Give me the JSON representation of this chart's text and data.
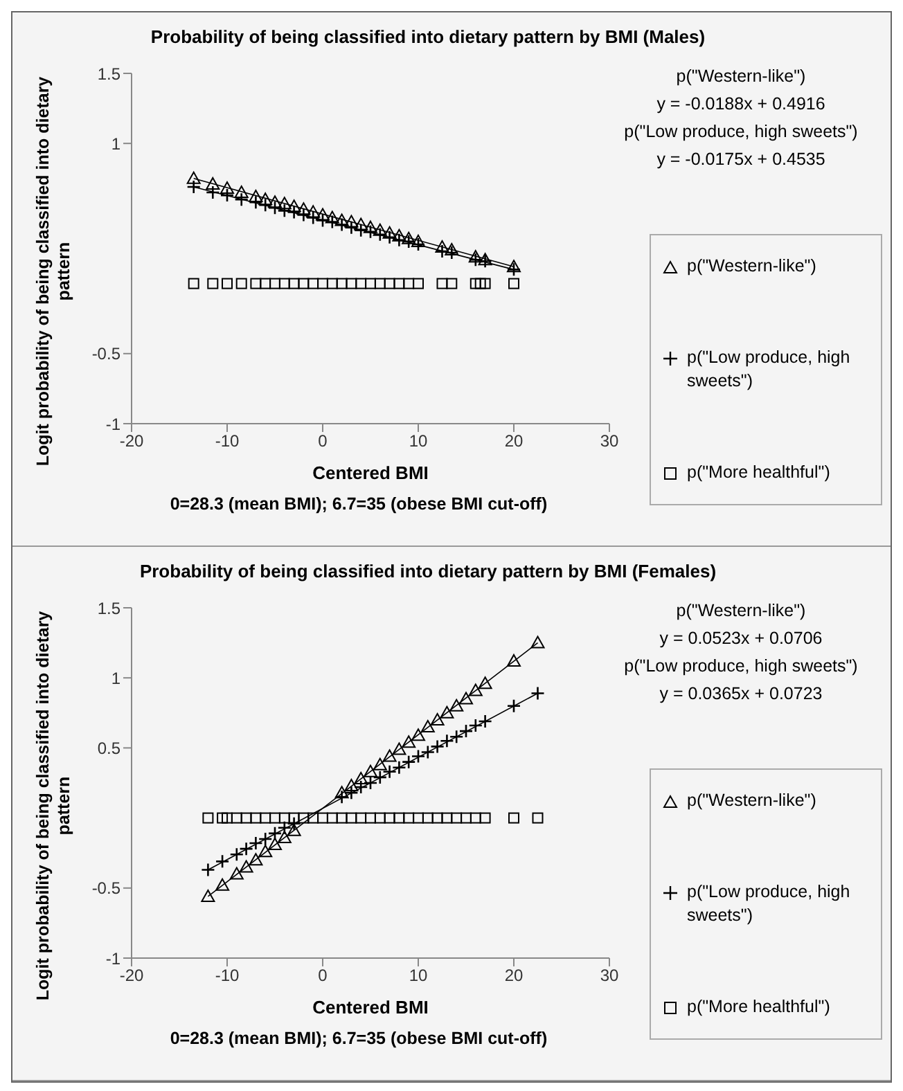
{
  "chart_data": [
    {
      "type": "scatter",
      "title": "Probability of being classified into dietary pattern by BMI (Males)",
      "xlabel": "Centered BMI",
      "ylabel": "Logit probability of being classified into dietary pattern",
      "xlim": [
        -20,
        30
      ],
      "xticks": [
        -20,
        -10,
        0,
        10,
        20,
        30
      ],
      "ylim": [
        -1,
        1.5
      ],
      "yticks": [
        -1,
        -0.5,
        1,
        1.5
      ],
      "legend": "right",
      "annotations": [
        "p(\"Western-like\")",
        "y = -0.0188x + 0.4916",
        "p(\"Low produce, high sweets\")",
        "y = -0.0175x + 0.4535",
        "0=28.3 (mean BMI); 6.7=35 (obese BMI cut-off)"
      ],
      "x": [
        -13.5,
        -11.5,
        -10,
        -8.5,
        -7,
        -6,
        -5,
        -4,
        -3,
        -2,
        -1,
        0,
        1,
        2,
        3,
        4,
        5,
        6,
        7,
        8,
        9,
        10,
        12.5,
        13.5,
        16,
        17,
        20
      ],
      "series": [
        {
          "name": "p(\"Western-like\")",
          "color": "#000000",
          "marker": "triangle",
          "values": [
            0.75,
            0.71,
            0.68,
            0.65,
            0.62,
            0.6,
            0.58,
            0.57,
            0.55,
            0.53,
            0.51,
            0.49,
            0.47,
            0.45,
            0.44,
            0.42,
            0.4,
            0.38,
            0.36,
            0.34,
            0.32,
            0.3,
            0.26,
            0.24,
            0.19,
            0.17,
            0.12
          ]
        },
        {
          "name": "p(\"Low produce, high sweets\")",
          "color": "#000000",
          "marker": "cross",
          "values": [
            0.69,
            0.65,
            0.63,
            0.6,
            0.58,
            0.56,
            0.54,
            0.52,
            0.51,
            0.49,
            0.47,
            0.45,
            0.44,
            0.42,
            0.4,
            0.38,
            0.37,
            0.35,
            0.33,
            0.31,
            0.3,
            0.28,
            0.23,
            0.22,
            0.17,
            0.16,
            0.1
          ]
        },
        {
          "name": "p(\"More healthful\")",
          "color": "#000000",
          "marker": "square",
          "x": [
            -13.5,
            -11.5,
            -10,
            -8.5,
            -7,
            -6,
            -5,
            -4,
            -3,
            -2,
            -1,
            0,
            1,
            2,
            3,
            4,
            5,
            6,
            7,
            8,
            9,
            10,
            12.5,
            13.5,
            16,
            16.5,
            17,
            20
          ],
          "values": [
            0,
            0,
            0,
            0,
            0,
            0,
            0,
            0,
            0,
            0,
            0,
            0,
            0,
            0,
            0,
            0,
            0,
            0,
            0,
            0,
            0,
            0,
            0,
            0,
            0,
            0,
            0,
            0
          ]
        },
        {
          "type": "line",
          "color": "#000000",
          "marker": "none",
          "x": [
            -13.5,
            20
          ],
          "values": [
            0.75,
            0.12
          ]
        },
        {
          "type": "line",
          "color": "#000000",
          "marker": "none",
          "x": [
            -13.5,
            20
          ],
          "values": [
            0.69,
            0.1
          ]
        }
      ]
    },
    {
      "type": "scatter",
      "title": "Probability of being classified into dietary pattern by BMI (Females)",
      "xlabel": "Centered BMI",
      "ylabel": "Logit probability of being classified into dietary pattern",
      "xlim": [
        -20,
        30
      ],
      "xticks": [
        -20,
        -10,
        0,
        10,
        20,
        30
      ],
      "ylim": [
        -1,
        1.5
      ],
      "yticks": [
        -1,
        -0.5,
        0.5,
        1,
        1.5
      ],
      "legend": "right",
      "annotations": [
        "p(\"Western-like\")",
        "y = 0.0523x + 0.0706",
        "p(\"Low produce, high sweets\")",
        "y = 0.0365x + 0.0723",
        "0=28.3 (mean BMI); 6.7=35 (obese BMI cut-off)"
      ],
      "x": [
        -12,
        -10.5,
        -9,
        -8,
        -7,
        -6,
        -5,
        -4,
        -3,
        2,
        3,
        4,
        5,
        6,
        7,
        8,
        9,
        10,
        11,
        12,
        13,
        14,
        15,
        16,
        17,
        20,
        22.5
      ],
      "series": [
        {
          "name": "p(\"Western-like\")",
          "color": "#000000",
          "marker": "triangle",
          "values": [
            -0.56,
            -0.48,
            -0.4,
            -0.35,
            -0.3,
            -0.24,
            -0.19,
            -0.14,
            -0.09,
            0.18,
            0.23,
            0.28,
            0.33,
            0.38,
            0.44,
            0.49,
            0.54,
            0.59,
            0.65,
            0.7,
            0.75,
            0.8,
            0.85,
            0.91,
            0.96,
            1.12,
            1.25
          ]
        },
        {
          "name": "p(\"Low produce, high sweets\")",
          "color": "#000000",
          "marker": "cross",
          "values": [
            -0.37,
            -0.31,
            -0.26,
            -0.22,
            -0.18,
            -0.15,
            -0.11,
            -0.07,
            -0.04,
            0.15,
            0.18,
            0.22,
            0.25,
            0.29,
            0.33,
            0.36,
            0.4,
            0.44,
            0.47,
            0.51,
            0.55,
            0.58,
            0.62,
            0.66,
            0.69,
            0.8,
            0.89
          ]
        },
        {
          "name": "p(\"More healthful\")",
          "color": "#000000",
          "marker": "square",
          "x": [
            -12,
            -10.5,
            -10,
            -9,
            -8,
            -7,
            -6,
            -5,
            -4,
            -3,
            -2,
            -1,
            0,
            1,
            2,
            3,
            4,
            5,
            6,
            7,
            8,
            9,
            10,
            11,
            12,
            13,
            14,
            15,
            16,
            17,
            20,
            22.5
          ],
          "values": [
            0,
            0,
            0,
            0,
            0,
            0,
            0,
            0,
            0,
            0,
            0,
            0,
            0,
            0,
            0,
            0,
            0,
            0,
            0,
            0,
            0,
            0,
            0,
            0,
            0,
            0,
            0,
            0,
            0,
            0,
            0,
            0
          ]
        },
        {
          "type": "line",
          "color": "#000000",
          "marker": "none",
          "x": [
            -12,
            22.5
          ],
          "values": [
            -0.56,
            1.25
          ]
        },
        {
          "type": "line",
          "color": "#000000",
          "marker": "none",
          "x": [
            -12,
            22.5
          ],
          "values": [
            -0.37,
            0.89
          ]
        }
      ]
    }
  ]
}
